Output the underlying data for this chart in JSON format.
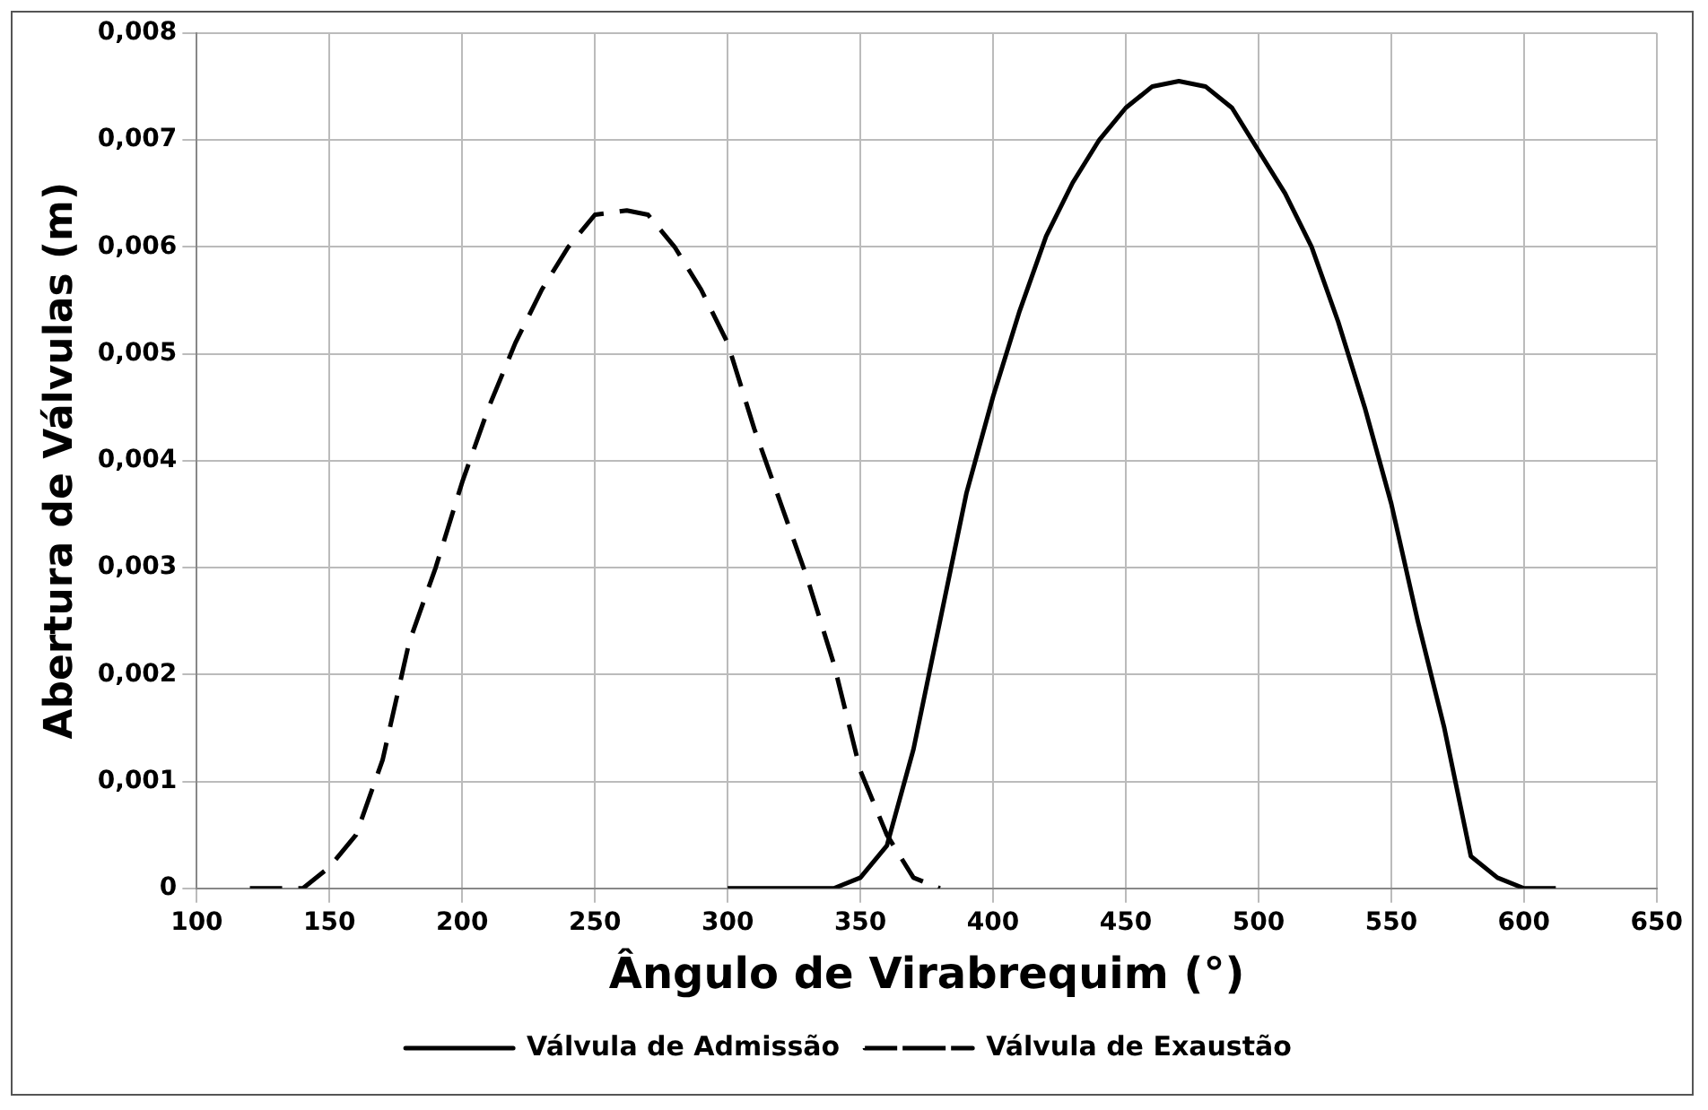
{
  "chart_data": {
    "type": "line",
    "xlabel": "Ângulo de Virabrequim (°)",
    "ylabel": "Abertura de Válvulas (m)",
    "xlim": [
      100,
      650
    ],
    "xticks": [
      100,
      150,
      200,
      250,
      300,
      350,
      400,
      450,
      500,
      550,
      600,
      650
    ],
    "ylim": [
      0,
      0.008
    ],
    "yticks": [
      0,
      {
        "value": 0.001,
        "label": "0,001"
      },
      {
        "value": 0.002,
        "label": "0,002"
      },
      {
        "value": 0.003,
        "label": "0,003"
      },
      {
        "value": 0.004,
        "label": "0,004"
      },
      {
        "value": 0.005,
        "label": "0,005"
      },
      {
        "value": 0.006,
        "label": "0,006"
      },
      {
        "value": 0.007,
        "label": "0,007"
      },
      {
        "value": 0.008,
        "label": "0,008"
      }
    ],
    "grid": true,
    "legend": "bottom",
    "marker": "none",
    "series": [
      {
        "name": "Válvula de Admissão",
        "color": "#000000",
        "line_style": "solid",
        "x": [
          300,
          320,
          340,
          350,
          360,
          370,
          380,
          390,
          400,
          410,
          420,
          430,
          440,
          450,
          460,
          470,
          480,
          490,
          500,
          510,
          520,
          530,
          540,
          550,
          560,
          570,
          580,
          590,
          600,
          612
        ],
        "values": [
          0,
          0,
          0,
          0.0001,
          0.0004,
          0.0013,
          0.0025,
          0.0037,
          0.0046,
          0.0054,
          0.0061,
          0.0066,
          0.007,
          0.0073,
          0.0075,
          0.00755,
          0.0075,
          0.0073,
          0.0069,
          0.0065,
          0.006,
          0.0053,
          0.0045,
          0.0036,
          0.0025,
          0.0015,
          0.0003,
          0.0001,
          0,
          0
        ]
      },
      {
        "name": "Válvula de Exaustão",
        "color": "#000000",
        "line_style": "dashed",
        "x": [
          120,
          140,
          150,
          160,
          170,
          180,
          190,
          200,
          210,
          220,
          230,
          240,
          250,
          262,
          270,
          280,
          290,
          300,
          310,
          320,
          330,
          340,
          350,
          360,
          370,
          380
        ],
        "values": [
          0,
          0,
          0.0002,
          0.0005,
          0.0012,
          0.0023,
          0.003,
          0.0038,
          0.0045,
          0.0051,
          0.0056,
          0.006,
          0.0063,
          0.00634,
          0.0063,
          0.006,
          0.0056,
          0.0051,
          0.0043,
          0.0036,
          0.0029,
          0.0021,
          0.0011,
          0.0005,
          0.0001,
          0
        ]
      }
    ]
  }
}
